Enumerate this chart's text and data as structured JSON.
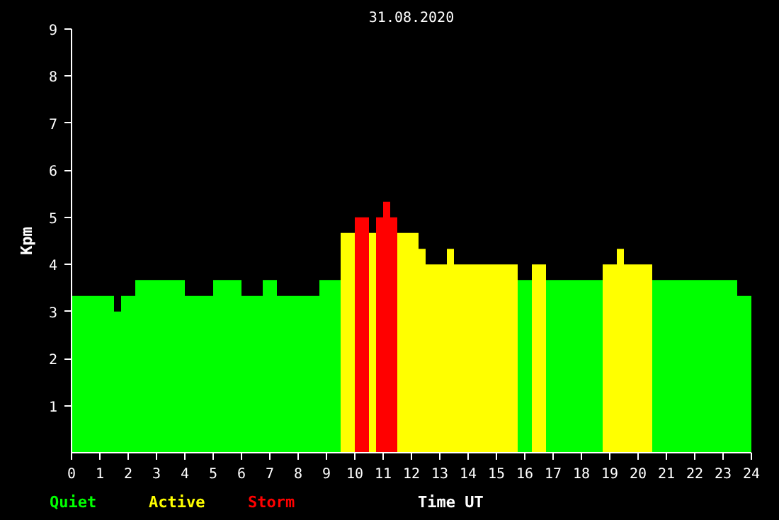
{
  "chart_data": {
    "type": "histogram",
    "title": "31.08.2020",
    "xlabel": "Time UT",
    "ylabel": "Kpm",
    "bins": [
      0,
      1.5,
      1.75,
      2.25,
      4.0,
      5.0,
      6.0,
      6.75,
      7.25,
      8.75,
      9.5,
      10.0,
      10.5,
      10.75,
      11.0,
      11.25,
      11.5,
      12.25,
      12.5,
      13.25,
      13.5,
      15.75,
      16.25,
      16.75,
      18.75,
      19.25,
      19.5,
      20.5,
      23.5,
      24
    ],
    "series": [
      {
        "name": "Quiet",
        "color": "#00ff00",
        "values": [
          3.33,
          3.0,
          3.33,
          3.67,
          3.33,
          3.67,
          3.33,
          3.67,
          3.33,
          3.67,
          null,
          null,
          null,
          null,
          null,
          null,
          null,
          null,
          null,
          null,
          null,
          3.67,
          null,
          3.67,
          null,
          null,
          null,
          3.67,
          3.33
        ]
      },
      {
        "name": "Active",
        "color": "#ffff00",
        "values": [
          null,
          null,
          null,
          null,
          null,
          null,
          null,
          null,
          null,
          null,
          4.67,
          null,
          4.67,
          null,
          null,
          null,
          4.67,
          4.33,
          4.0,
          4.33,
          4.0,
          null,
          4.0,
          null,
          4.0,
          4.33,
          4.0,
          null,
          null
        ]
      },
      {
        "name": "Storm",
        "color": "#ff0000",
        "values": [
          null,
          null,
          null,
          null,
          null,
          null,
          null,
          null,
          null,
          null,
          null,
          5.0,
          null,
          5.0,
          5.33,
          5.0,
          null,
          null,
          null,
          null,
          null,
          null,
          null,
          null,
          null,
          null,
          null,
          null,
          null
        ]
      }
    ],
    "xlim": [
      0,
      24
    ],
    "ylim": [
      0,
      9
    ],
    "xticks": [
      0,
      1,
      2,
      3,
      4,
      5,
      6,
      7,
      8,
      9,
      10,
      11,
      12,
      13,
      14,
      15,
      16,
      17,
      18,
      19,
      20,
      21,
      22,
      23,
      24
    ],
    "yticks": [
      1,
      2,
      3,
      4,
      5,
      6,
      7,
      8,
      9
    ],
    "grid": false
  }
}
